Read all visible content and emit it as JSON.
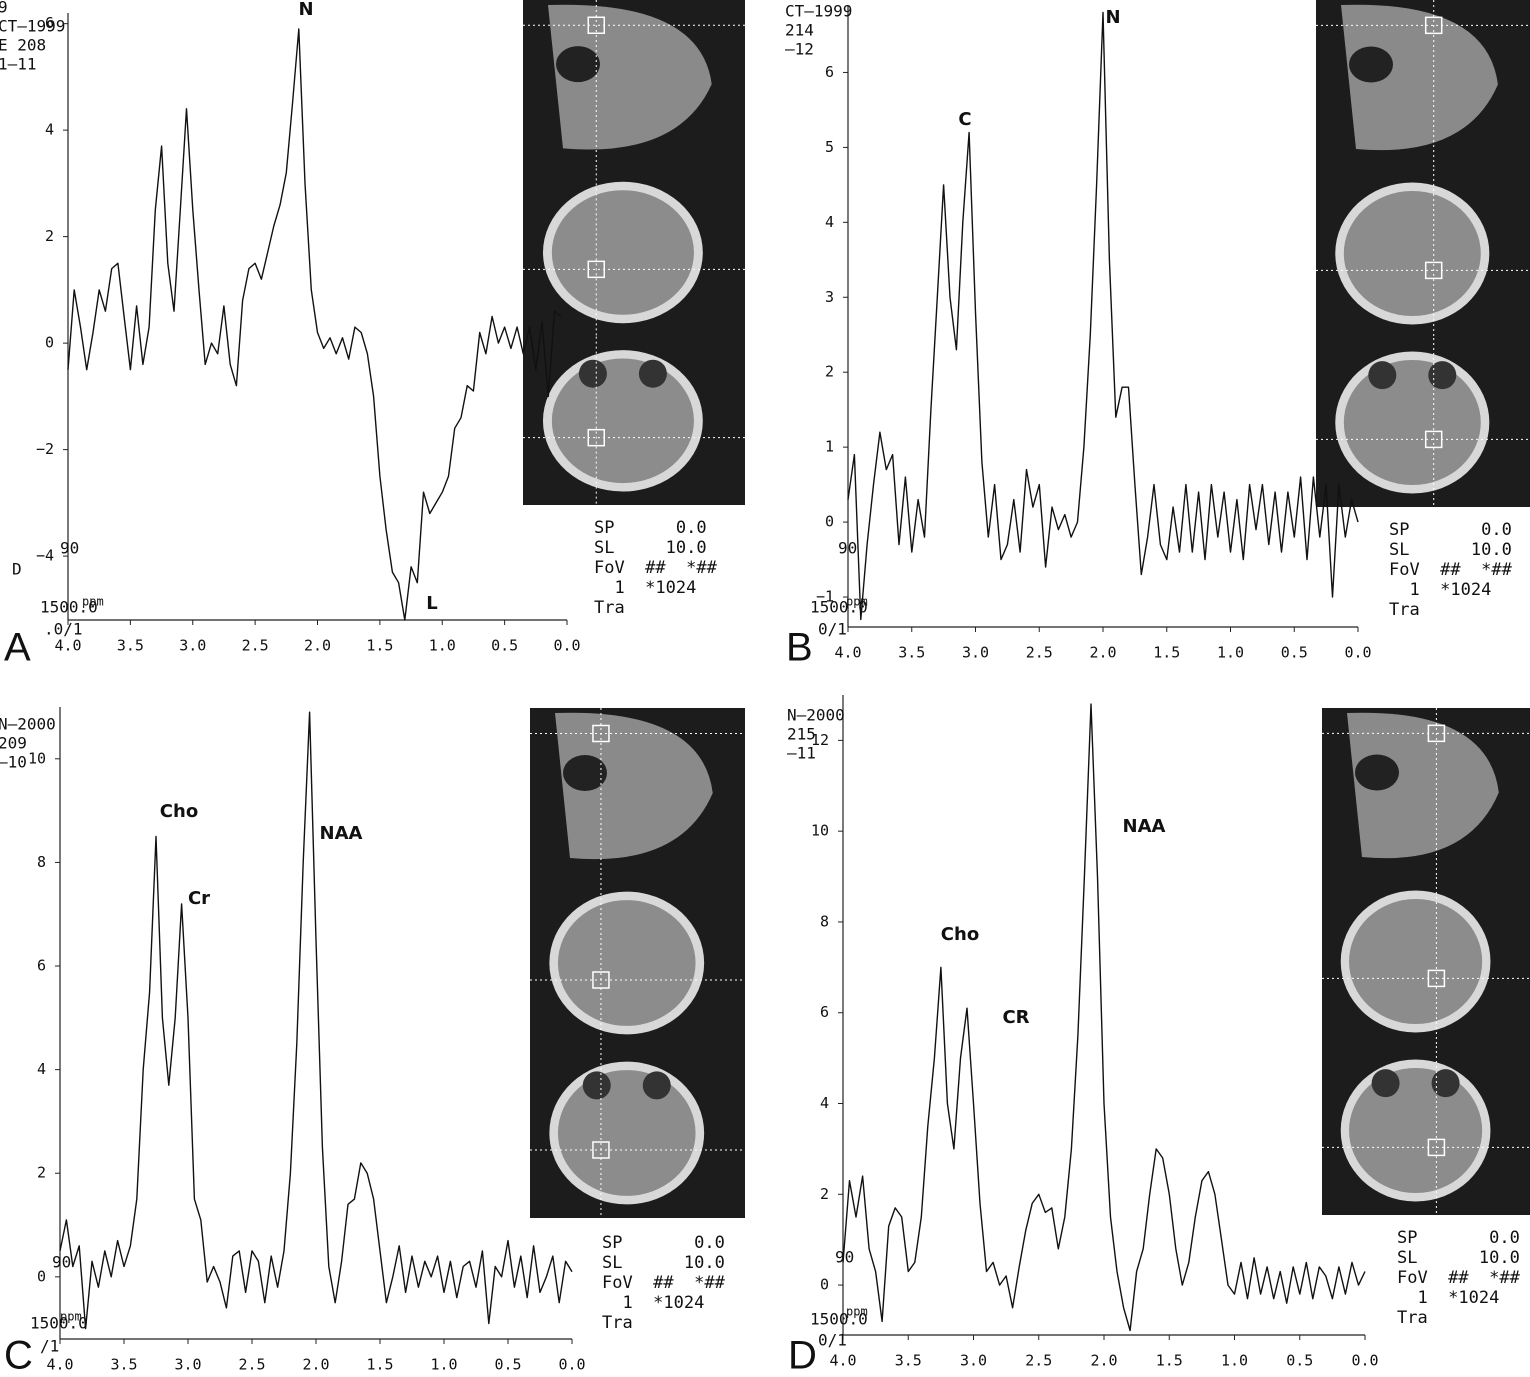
{
  "chart_data": [
    {
      "type": "line",
      "panel_label": "A",
      "header_lines": [
        "9",
        "CT–1999",
        "E 208",
        "1–11"
      ],
      "info_lines": [
        "SP      0.0",
        "SL     10.0",
        "FoV  ##  *##",
        "  1  *1024",
        "Tra"
      ],
      "side_labels": [
        "D",
        "90",
        "1500.0",
        ".0/1"
      ],
      "unit_label": "ppm",
      "annotations": [
        "N",
        "L"
      ],
      "x": [
        4.0,
        3.95,
        3.9,
        3.85,
        3.8,
        3.75,
        3.7,
        3.65,
        3.6,
        3.55,
        3.5,
        3.45,
        3.4,
        3.35,
        3.3,
        3.25,
        3.2,
        3.15,
        3.1,
        3.05,
        3.0,
        2.95,
        2.9,
        2.85,
        2.8,
        2.75,
        2.7,
        2.65,
        2.6,
        2.55,
        2.5,
        2.45,
        2.4,
        2.35,
        2.3,
        2.25,
        2.2,
        2.15,
        2.1,
        2.05,
        2.0,
        1.95,
        1.9,
        1.85,
        1.8,
        1.75,
        1.7,
        1.65,
        1.6,
        1.55,
        1.5,
        1.45,
        1.4,
        1.35,
        1.3,
        1.25,
        1.2,
        1.15,
        1.1,
        1.05,
        1.0,
        0.95,
        0.9,
        0.85,
        0.8,
        0.75,
        0.7,
        0.65,
        0.6,
        0.55,
        0.5,
        0.45,
        0.4,
        0.35,
        0.3,
        0.25,
        0.2,
        0.15,
        0.1,
        0.05
      ],
      "values": [
        -0.5,
        1.0,
        0.3,
        -0.5,
        0.2,
        1.0,
        0.6,
        1.4,
        1.5,
        0.5,
        -0.5,
        0.7,
        -0.4,
        0.3,
        2.5,
        3.7,
        1.5,
        0.6,
        2.5,
        4.4,
        2.5,
        1.0,
        -0.4,
        0.0,
        -0.2,
        0.7,
        -0.4,
        -0.8,
        0.8,
        1.4,
        1.5,
        1.2,
        1.7,
        2.2,
        2.6,
        3.2,
        4.5,
        5.9,
        3.0,
        1.0,
        0.2,
        -0.1,
        0.1,
        -0.2,
        0.1,
        -0.3,
        0.3,
        0.2,
        -0.2,
        -1.0,
        -2.5,
        -3.5,
        -4.3,
        -4.5,
        -5.2,
        -4.2,
        -4.5,
        -2.8,
        -3.2,
        -3.0,
        -2.8,
        -2.5,
        -1.6,
        -1.4,
        -0.8,
        -0.9,
        0.2,
        -0.2,
        0.5,
        0.0,
        0.3,
        -0.1,
        0.3,
        -0.2,
        0.3,
        -0.5,
        0.4,
        -1.0,
        0.6,
        0.5
      ],
      "color": "#111111",
      "xlim": [
        4.0,
        0.0
      ],
      "ylim": [
        -5.2,
        6.2
      ],
      "xticks": [
        {
          "value": 4,
          "label": "4.0"
        },
        3.5,
        {
          "value": 3,
          "label": "3.0"
        },
        2.5,
        {
          "value": 2,
          "label": "2.0"
        },
        1.5,
        {
          "value": 1,
          "label": "1.0"
        },
        0.5,
        {
          "value": 0,
          "label": "0.0"
        }
      ],
      "yticks": [
        {
          "value": -4,
          "label": "−4"
        },
        {
          "value": -2,
          "label": "−2"
        },
        0,
        2,
        4,
        6
      ]
    },
    {
      "type": "line",
      "panel_label": "B",
      "header_lines": [
        "CT–1999",
        "214",
        "–12"
      ],
      "info_lines": [
        "SP       0.0",
        "SL      10.0",
        "FoV  ##  *##",
        "  1  *1024",
        "Tra"
      ],
      "side_labels": [
        "90",
        "1500.0",
        "0/1"
      ],
      "unit_label": "ppm",
      "annotations": [
        "C",
        "N"
      ],
      "x": [
        4.0,
        3.95,
        3.9,
        3.85,
        3.8,
        3.75,
        3.7,
        3.65,
        3.6,
        3.55,
        3.5,
        3.45,
        3.4,
        3.35,
        3.3,
        3.25,
        3.2,
        3.15,
        3.1,
        3.05,
        3.0,
        2.95,
        2.9,
        2.85,
        2.8,
        2.75,
        2.7,
        2.65,
        2.6,
        2.55,
        2.5,
        2.45,
        2.4,
        2.35,
        2.3,
        2.25,
        2.2,
        2.15,
        2.1,
        2.05,
        2.0,
        1.95,
        1.9,
        1.85,
        1.8,
        1.75,
        1.7,
        1.65,
        1.6,
        1.55,
        1.5,
        1.45,
        1.4,
        1.35,
        1.3,
        1.25,
        1.2,
        1.15,
        1.1,
        1.05,
        1.0,
        0.95,
        0.9,
        0.85,
        0.8,
        0.75,
        0.7,
        0.65,
        0.6,
        0.55,
        0.5,
        0.45,
        0.4,
        0.35,
        0.3,
        0.25,
        0.2,
        0.15,
        0.1,
        0.05,
        0.0
      ],
      "values": [
        0.3,
        0.9,
        -1.3,
        -0.3,
        0.5,
        1.2,
        0.7,
        0.9,
        -0.3,
        0.6,
        -0.4,
        0.3,
        -0.2,
        1.5,
        3.0,
        4.5,
        3.0,
        2.3,
        4.0,
        5.2,
        2.8,
        0.8,
        -0.2,
        0.5,
        -0.5,
        -0.3,
        0.3,
        -0.4,
        0.7,
        0.2,
        0.5,
        -0.6,
        0.2,
        -0.1,
        0.1,
        -0.2,
        0.0,
        1.0,
        2.5,
        4.5,
        6.8,
        3.5,
        1.4,
        1.8,
        1.8,
        0.5,
        -0.7,
        -0.2,
        0.5,
        -0.3,
        -0.5,
        0.2,
        -0.4,
        0.5,
        -0.4,
        0.4,
        -0.5,
        0.5,
        -0.2,
        0.4,
        -0.4,
        0.3,
        -0.5,
        0.5,
        -0.1,
        0.5,
        -0.3,
        0.4,
        -0.4,
        0.4,
        -0.2,
        0.6,
        -0.5,
        0.6,
        -0.2,
        0.5,
        -1.0,
        0.5,
        -0.2,
        0.3,
        0.0
      ],
      "color": "#111111",
      "xlim": [
        4.0,
        0.0
      ],
      "ylim": [
        -1.4,
        6.9
      ],
      "xticks": [
        {
          "value": 4,
          "label": "4.0"
        },
        3.5,
        {
          "value": 3,
          "label": "3.0"
        },
        2.5,
        {
          "value": 2,
          "label": "2.0"
        },
        1.5,
        {
          "value": 1,
          "label": "1.0"
        },
        0.5,
        {
          "value": 0,
          "label": "0.0"
        }
      ],
      "yticks": [
        {
          "value": -1,
          "label": "−1"
        },
        0,
        1,
        2,
        3,
        4,
        5,
        6
      ]
    },
    {
      "type": "line",
      "panel_label": "C",
      "header_lines": [
        "N–2000",
        "209",
        "–10"
      ],
      "info_lines": [
        "SP       0.0",
        "SL      10.0",
        "FoV  ##  *##",
        "  1  *1024",
        "Tra"
      ],
      "side_labels": [
        "90",
        "1500.0",
        "/1"
      ],
      "unit_label": "ppm",
      "annotations": [
        "Cho",
        "Cr",
        "NAA"
      ],
      "x": [
        4.0,
        3.95,
        3.9,
        3.85,
        3.8,
        3.75,
        3.7,
        3.65,
        3.6,
        3.55,
        3.5,
        3.45,
        3.4,
        3.35,
        3.3,
        3.25,
        3.2,
        3.15,
        3.1,
        3.05,
        3.0,
        2.95,
        2.9,
        2.85,
        2.8,
        2.75,
        2.7,
        2.65,
        2.6,
        2.55,
        2.5,
        2.45,
        2.4,
        2.35,
        2.3,
        2.25,
        2.2,
        2.15,
        2.1,
        2.05,
        2.0,
        1.95,
        1.9,
        1.85,
        1.8,
        1.75,
        1.7,
        1.65,
        1.6,
        1.55,
        1.5,
        1.45,
        1.4,
        1.35,
        1.3,
        1.25,
        1.2,
        1.15,
        1.1,
        1.05,
        1.0,
        0.95,
        0.9,
        0.85,
        0.8,
        0.75,
        0.7,
        0.65,
        0.6,
        0.55,
        0.5,
        0.45,
        0.4,
        0.35,
        0.3,
        0.25,
        0.2,
        0.15,
        0.1,
        0.05,
        0.0
      ],
      "values": [
        0.5,
        1.1,
        0.2,
        0.6,
        -1.0,
        0.3,
        -0.2,
        0.5,
        0.0,
        0.7,
        0.2,
        0.6,
        1.5,
        4.0,
        5.5,
        8.5,
        5.0,
        3.7,
        5.0,
        7.2,
        5.0,
        1.5,
        1.1,
        -0.1,
        0.2,
        -0.1,
        -0.6,
        0.4,
        0.5,
        -0.3,
        0.5,
        0.3,
        -0.5,
        0.4,
        -0.2,
        0.5,
        2.0,
        4.5,
        8.0,
        10.9,
        6.5,
        2.5,
        0.2,
        -0.5,
        0.3,
        1.4,
        1.5,
        2.2,
        2.0,
        1.5,
        0.5,
        -0.5,
        0.0,
        0.6,
        -0.3,
        0.4,
        -0.2,
        0.3,
        0.0,
        0.4,
        -0.3,
        0.3,
        -0.4,
        0.2,
        0.3,
        -0.2,
        0.5,
        -0.9,
        0.2,
        0.0,
        0.7,
        -0.2,
        0.4,
        -0.4,
        0.6,
        -0.3,
        0.0,
        0.4,
        -0.5,
        0.3,
        0.1
      ],
      "color": "#111111",
      "xlim": [
        4.0,
        0.0
      ],
      "ylim": [
        -1.2,
        11
      ],
      "xticks": [
        {
          "value": 4,
          "label": "4.0"
        },
        3.5,
        {
          "value": 3,
          "label": "3.0"
        },
        2.5,
        {
          "value": 2,
          "label": "2.0"
        },
        1.5,
        {
          "value": 1,
          "label": "1.0"
        },
        0.5,
        {
          "value": 0,
          "label": "0.0"
        }
      ],
      "yticks": [
        0,
        2,
        4,
        6,
        8,
        10
      ]
    },
    {
      "type": "line",
      "panel_label": "D",
      "header_lines": [
        "N–2000",
        "215",
        "–11"
      ],
      "info_lines": [
        "SP       0.0",
        "SL      10.0",
        "FoV  ##  *##",
        "  1  *1024",
        "Tra"
      ],
      "side_labels": [
        "90",
        "1500.0",
        "0/1"
      ],
      "unit_label": "ppm",
      "annotations": [
        "Cho",
        "CR",
        "NAA"
      ],
      "x": [
        4.0,
        3.95,
        3.9,
        3.85,
        3.8,
        3.75,
        3.7,
        3.65,
        3.6,
        3.55,
        3.5,
        3.45,
        3.4,
        3.35,
        3.3,
        3.25,
        3.2,
        3.15,
        3.1,
        3.05,
        3.0,
        2.95,
        2.9,
        2.85,
        2.8,
        2.75,
        2.7,
        2.65,
        2.6,
        2.55,
        2.5,
        2.45,
        2.4,
        2.35,
        2.3,
        2.25,
        2.2,
        2.15,
        2.1,
        2.05,
        2.0,
        1.95,
        1.9,
        1.85,
        1.8,
        1.75,
        1.7,
        1.65,
        1.6,
        1.55,
        1.5,
        1.45,
        1.4,
        1.35,
        1.3,
        1.25,
        1.2,
        1.15,
        1.1,
        1.05,
        1.0,
        0.95,
        0.9,
        0.85,
        0.8,
        0.75,
        0.7,
        0.65,
        0.6,
        0.55,
        0.5,
        0.45,
        0.4,
        0.35,
        0.3,
        0.25,
        0.2,
        0.15,
        0.1,
        0.05,
        0.0
      ],
      "values": [
        0.5,
        2.3,
        1.5,
        2.4,
        0.8,
        0.3,
        -0.8,
        1.3,
        1.7,
        1.5,
        0.3,
        0.5,
        1.5,
        3.5,
        5.0,
        7.0,
        4.0,
        3.0,
        5.0,
        6.1,
        4.0,
        1.8,
        0.3,
        0.5,
        0.0,
        0.2,
        -0.5,
        0.4,
        1.2,
        1.8,
        2.0,
        1.6,
        1.7,
        0.8,
        1.5,
        3.0,
        5.5,
        9.0,
        12.8,
        9.0,
        4.0,
        1.5,
        0.3,
        -0.5,
        -1.0,
        0.3,
        0.8,
        2.0,
        3.0,
        2.8,
        2.0,
        0.8,
        0.0,
        0.5,
        1.5,
        2.3,
        2.5,
        2.0,
        1.0,
        0.0,
        -0.2,
        0.5,
        -0.3,
        0.6,
        -0.2,
        0.4,
        -0.3,
        0.3,
        -0.4,
        0.4,
        -0.2,
        0.5,
        -0.3,
        0.4,
        0.2,
        -0.3,
        0.4,
        -0.2,
        0.5,
        0.0,
        0.3
      ],
      "color": "#111111",
      "xlim": [
        4.0,
        0.0
      ],
      "ylim": [
        -1.1,
        13
      ],
      "xticks": [
        {
          "value": 4,
          "label": "4.0"
        },
        3.5,
        {
          "value": 3,
          "label": "3.0"
        },
        2.5,
        {
          "value": 2,
          "label": "2.0"
        },
        1.5,
        {
          "value": 1,
          "label": "1.0"
        },
        0.5,
        {
          "value": 0,
          "label": "0.0"
        }
      ],
      "yticks": [
        0,
        2,
        4,
        6,
        8,
        10,
        12
      ]
    }
  ]
}
